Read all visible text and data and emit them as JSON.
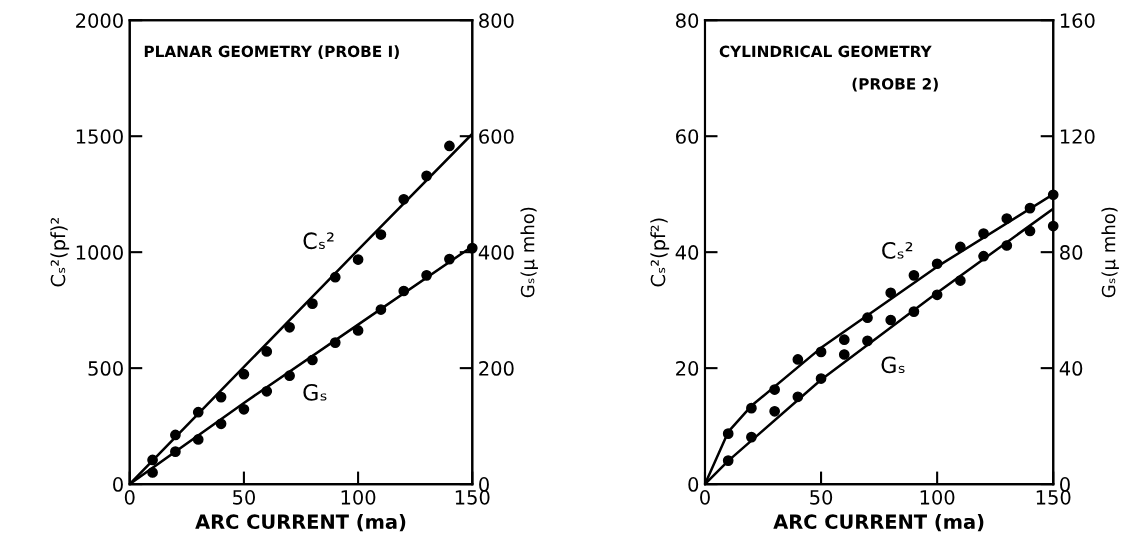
{
  "chart_data": [
    {
      "type": "scatter",
      "title": "PLANAR GEOMETRY (PROBE I)",
      "xlabel": "ARC CURRENT (ma)",
      "ylabel": "Cₛ²(pf)²",
      "y2label": "Gₛ(μ mho)",
      "xlim": [
        0,
        150
      ],
      "xticks": [
        0,
        50,
        100,
        150
      ],
      "ylim": [
        0,
        2000
      ],
      "yticks": [
        0,
        500,
        1000,
        1500,
        2000
      ],
      "y2lim": [
        0,
        800
      ],
      "y2ticks": [
        0,
        200,
        400,
        600,
        800
      ],
      "grid": false,
      "legend": false,
      "x": [
        10,
        20,
        30,
        40,
        50,
        60,
        70,
        80,
        90,
        100,
        110,
        120,
        130,
        140
      ],
      "series": [
        {
          "color": "#000000",
          "axis": "y",
          "marker": "circle",
          "values": [
            104,
            212,
            310,
            375,
            474,
            572,
            676,
            778,
            892,
            968,
            1076,
            1228,
            1329,
            1458
          ]
        },
        {
          "color": "#000000",
          "axis": "y2",
          "marker": "circle",
          "x": [
            10,
            20,
            30,
            40,
            50,
            60,
            70,
            80,
            90,
            100,
            110,
            120,
            130,
            140,
            150
          ],
          "values": [
            20,
            56,
            77,
            104,
            129,
            160,
            187,
            214,
            244,
            265,
            301,
            333,
            360,
            388,
            407
          ]
        },
        {
          "type": "line",
          "name": "Cₛ²",
          "color": "#000000",
          "axis": "y",
          "x": [
            0,
            50,
            100,
            150
          ],
          "values": [
            0,
            505,
            1010,
            1510
          ]
        },
        {
          "type": "line",
          "name": "Gₛ",
          "color": "#000000",
          "axis": "y2",
          "x": [
            0,
            50,
            100,
            150
          ],
          "values": [
            0,
            140,
            275,
            410
          ]
        }
      ]
    },
    {
      "type": "scatter",
      "title": "CYLINDRICAL GEOMETRY",
      "subtitle": "(PROBE 2)",
      "xlabel": "ARC CURRENT (ma)",
      "ylabel": "Cₛ²(pf²)",
      "y2label": "Gₛ(μ mho)",
      "xlim": [
        0,
        150
      ],
      "xticks": [
        0,
        50,
        100,
        150
      ],
      "ylim": [
        0,
        80
      ],
      "yticks": [
        0,
        20,
        40,
        60,
        80
      ],
      "y2lim": [
        0,
        160
      ],
      "y2ticks": [
        0,
        40,
        80,
        120,
        160
      ],
      "grid": false,
      "legend": false,
      "x": [
        10,
        20,
        30,
        40,
        50,
        60,
        70,
        80,
        90,
        100,
        110,
        120,
        130,
        140,
        150
      ],
      "series": [
        {
          "color": "#000000",
          "axis": "y",
          "marker": "circle",
          "values": [
            8.7,
            13.1,
            16.3,
            21.5,
            22.8,
            24.9,
            28.7,
            33.0,
            36.0,
            38.0,
            40.9,
            43.2,
            45.8,
            47.6,
            49.9
          ]
        },
        {
          "color": "#000000",
          "axis": "y2",
          "marker": "circle",
          "values": [
            8.1,
            16.2,
            25.1,
            30.1,
            36.4,
            44.7,
            49.4,
            56.6,
            59.5,
            65.3,
            70.2,
            78.6,
            82.3,
            87.3,
            89.0
          ]
        },
        {
          "type": "line",
          "name": "Cₛ²",
          "color": "#000000",
          "axis": "y",
          "x": [
            0,
            10,
            20,
            50,
            100,
            150
          ],
          "values": [
            0,
            9,
            13.5,
            23.5,
            37.5,
            50
          ]
        },
        {
          "type": "line",
          "name": "Gₛ",
          "color": "#000000",
          "axis": "y2",
          "x": [
            0,
            10,
            50,
            100,
            150
          ],
          "values": [
            0,
            8,
            36,
            66,
            95
          ]
        }
      ]
    }
  ]
}
